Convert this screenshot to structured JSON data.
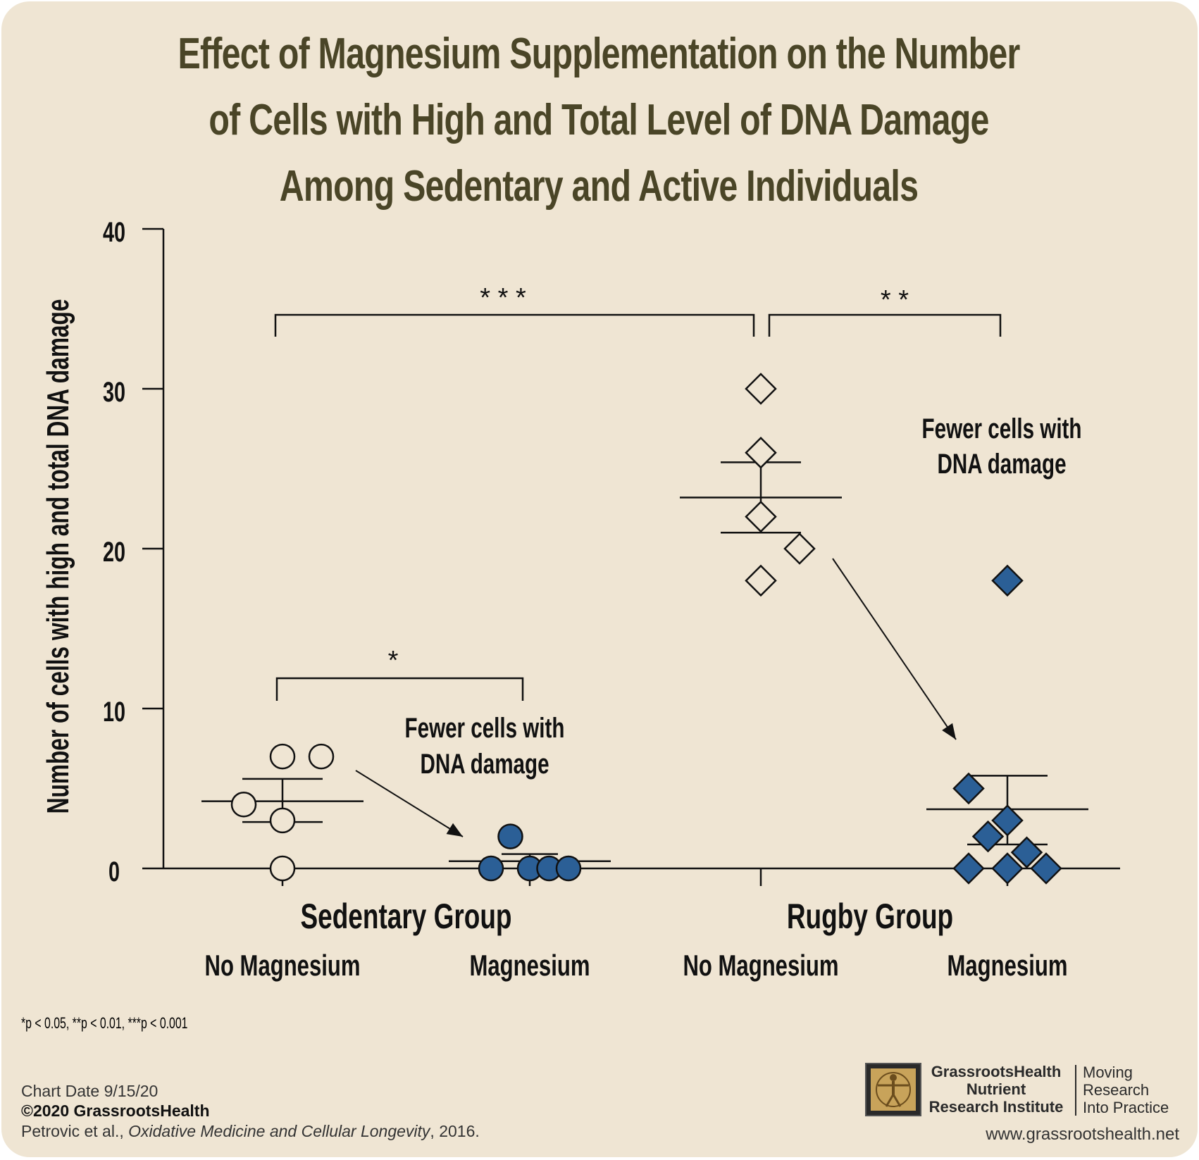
{
  "chart_data": {
    "type": "scatter",
    "title": "Effect of Magnesium Supplementation on the Number of Cells with High and Total Level of DNA Damage Among Sedentary and Active Individuals",
    "ylabel": "Number of cells with high and total DNA damage",
    "ylim": [
      0,
      40
    ],
    "yticks": [
      "0",
      "10",
      "20",
      "30",
      "40"
    ],
    "groups": [
      {
        "label": "Sedentary Group",
        "columns": [
          "No Magnesium",
          "Magnesium"
        ]
      },
      {
        "label": "Rugby Group",
        "columns": [
          "No Magnesium",
          "Magnesium"
        ]
      }
    ],
    "series": [
      {
        "group": "Sedentary Group",
        "condition": "No Magnesium",
        "marker": "circle",
        "filled": false,
        "points": [
          [
            0.0,
            7
          ],
          [
            0.2,
            7
          ],
          [
            -0.2,
            4
          ],
          [
            0.0,
            3
          ],
          [
            0.0,
            0
          ]
        ],
        "mean": 4.2,
        "sem_low": 2.9,
        "sem_high": 5.6
      },
      {
        "group": "Sedentary Group",
        "condition": "Magnesium",
        "marker": "circle",
        "filled": true,
        "points": [
          [
            -0.1,
            2
          ],
          [
            -0.2,
            0
          ],
          [
            0.0,
            0
          ],
          [
            0.1,
            0
          ],
          [
            0.2,
            0
          ]
        ],
        "mean": 0.45,
        "sem_low": 0.0,
        "sem_high": 0.9
      },
      {
        "group": "Rugby Group",
        "condition": "No Magnesium",
        "marker": "diamond",
        "filled": false,
        "points": [
          [
            0.0,
            30
          ],
          [
            0.0,
            26
          ],
          [
            0.0,
            22
          ],
          [
            0.2,
            20
          ],
          [
            0.0,
            18
          ]
        ],
        "mean": 23.2,
        "sem_low": 21.0,
        "sem_high": 25.4
      },
      {
        "group": "Rugby Group",
        "condition": "Magnesium",
        "marker": "diamond",
        "filled": true,
        "points": [
          [
            0.0,
            18
          ],
          [
            -0.2,
            5
          ],
          [
            0.0,
            3
          ],
          [
            -0.1,
            2
          ],
          [
            0.1,
            1
          ],
          [
            -0.2,
            0
          ],
          [
            0.0,
            0
          ],
          [
            0.2,
            0
          ]
        ],
        "mean": 3.7,
        "sem_low": 1.5,
        "sem_high": 5.8
      }
    ],
    "significance": [
      {
        "label": "*",
        "from": "Sedentary No Magnesium",
        "to": "Sedentary Magnesium"
      },
      {
        "label": "* * *",
        "from": "Sedentary No Magnesium",
        "to": "Rugby No Magnesium"
      },
      {
        "label": "* *",
        "from": "Rugby No Magnesium",
        "to": "Rugby Magnesium"
      }
    ],
    "annotations": [
      {
        "text_line1": "Fewer cells with",
        "text_line2": "DNA damage"
      },
      {
        "text_line1": "Fewer cells with",
        "text_line2": "DNA damage"
      }
    ],
    "colors": {
      "filled": "#2b5f96",
      "outline": "#111111",
      "text": "#4a4527"
    }
  },
  "footnote": "*p < 0.05, **p < 0.01, ***p < 0.001",
  "footer": {
    "chart_date": "Chart Date 9/15/20",
    "copyright": "©2020 GrassrootsHealth",
    "citation_authors": "Petrovic et al., ",
    "citation_journal": "Oxidative Medicine and Cellular Longevity",
    "citation_year": ", 2016."
  },
  "logo": {
    "icon": "vitruvian-man-icon",
    "org_line1": "GrassrootsHealth",
    "org_line2": "Nutrient",
    "org_line3": "Research Institute",
    "tagline_line1": "Moving",
    "tagline_line2": "Research",
    "tagline_line3": "Into Practice",
    "website": "www.grassrootshealth.net"
  }
}
